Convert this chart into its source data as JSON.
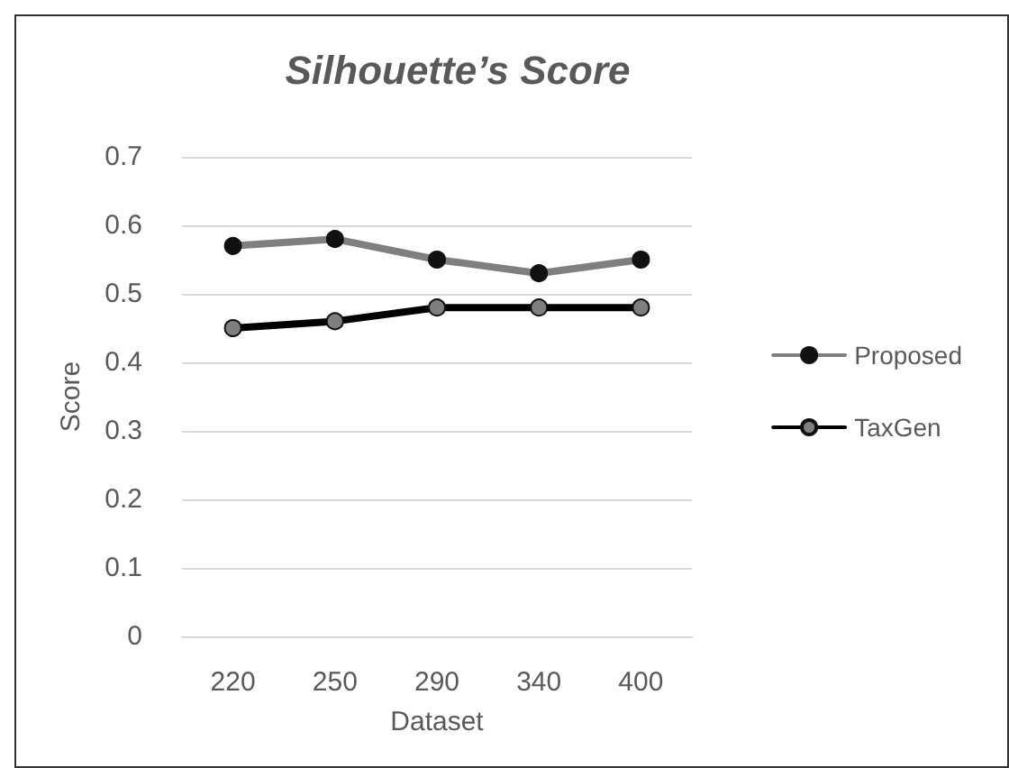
{
  "chart_data": {
    "type": "line",
    "title": "Silhouette’s Score",
    "xlabel": "Dataset",
    "ylabel": "Score",
    "categories": [
      "220",
      "250",
      "290",
      "340",
      "400"
    ],
    "series": [
      {
        "name": "Proposed",
        "color": "#7f7f7f",
        "values": [
          0.57,
          0.58,
          0.55,
          0.53,
          0.55
        ]
      },
      {
        "name": "TaxGen",
        "color": "#000000",
        "values": [
          0.45,
          0.46,
          0.48,
          0.48,
          0.48
        ]
      }
    ],
    "ylim": [
      0,
      0.7
    ],
    "yticks": [
      0,
      0.1,
      0.2,
      0.3,
      0.4,
      0.5,
      0.6,
      0.7
    ],
    "grid": "y",
    "legend": "right",
    "marker": "circle",
    "line_style": "solid"
  }
}
